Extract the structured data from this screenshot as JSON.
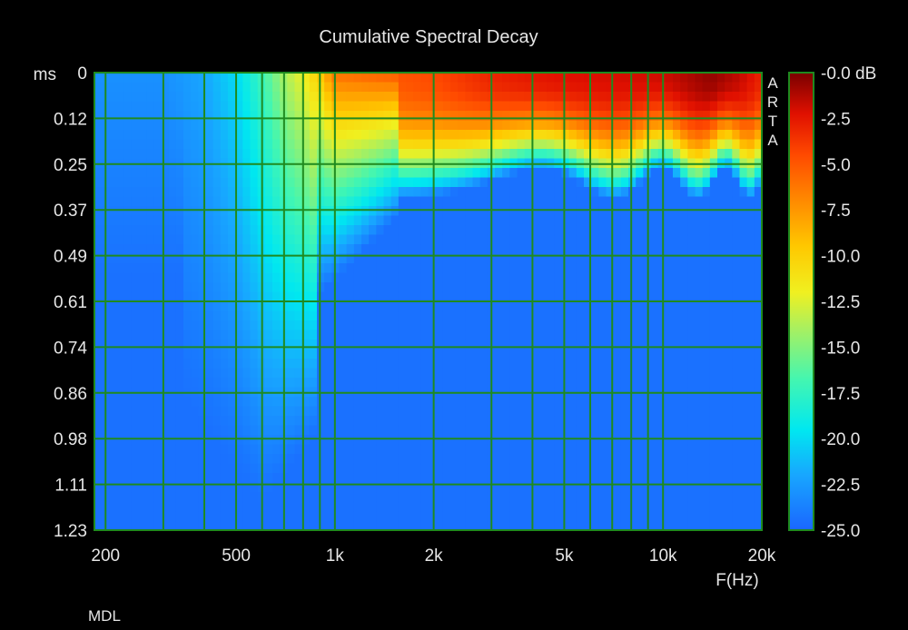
{
  "chart_data": {
    "type": "heatmap",
    "title": "Cumulative Spectral Decay",
    "xlabel": "F(Hz)",
    "x_scale": "log",
    "xlim": [
      185,
      20000
    ],
    "x_ticks": [
      {
        "value": 200,
        "label": "200"
      },
      {
        "value": 500,
        "label": "500"
      },
      {
        "value": 1000,
        "label": "1k"
      },
      {
        "value": 2000,
        "label": "2k"
      },
      {
        "value": 5000,
        "label": "5k"
      },
      {
        "value": 10000,
        "label": "10k"
      },
      {
        "value": 20000,
        "label": "20k"
      }
    ],
    "x_gridlines": [
      200,
      300,
      400,
      500,
      600,
      700,
      800,
      900,
      1000,
      2000,
      3000,
      4000,
      5000,
      6000,
      7000,
      8000,
      9000,
      10000,
      20000
    ],
    "y_unit_label": "ms",
    "y_ticks": [
      "0",
      "0.12",
      "0.25",
      "0.37",
      "0.49",
      "0.61",
      "0.74",
      "0.86",
      "0.98",
      "1.11",
      "1.23"
    ],
    "ylim": [
      0,
      1.23
    ],
    "colorbar": {
      "unit": "dB",
      "range": [
        -25.0,
        0.0
      ],
      "ticks": [
        "-0.0 dB",
        "-2.5",
        "-5.0",
        "-7.5",
        "-10.0",
        "-12.5",
        "-15.0",
        "-17.5",
        "-20.0",
        "-22.5",
        "-25.0"
      ]
    },
    "freq_points": [
      200,
      300,
      400,
      500,
      600,
      700,
      800,
      900,
      1000,
      1500,
      2000,
      3000,
      4000,
      5000,
      7000,
      10000,
      14000,
      17000,
      20000
    ],
    "decay_levels_db_at_0ms": [
      -23,
      -23,
      -22,
      -20,
      -17,
      -14,
      -12,
      -9.5,
      -6,
      -5,
      -4.5,
      -3,
      -2.5,
      -2.2,
      -2,
      -1.8,
      -0.5,
      -1.5,
      -3
    ],
    "tail_floor_db": -24.5,
    "grid": true,
    "grid_color": "#1f8a1f",
    "brand_text": "A\nR\nT\nA",
    "footer_text": "MDL"
  }
}
